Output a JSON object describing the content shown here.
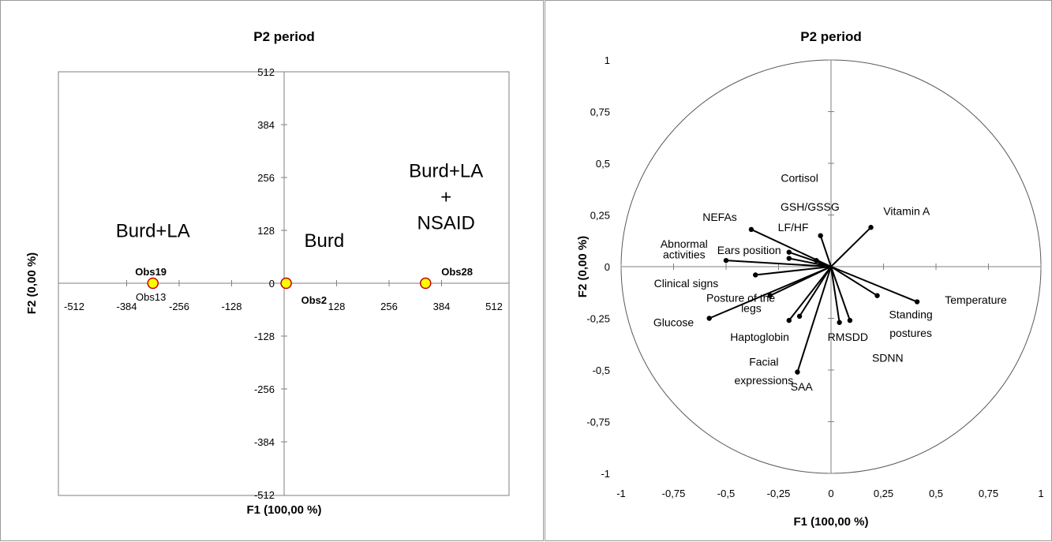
{
  "chart_data": [
    {
      "type": "scatter",
      "title": "P2 period",
      "xlabel": "F1 (100,00 %)",
      "ylabel": "F2 (0,00 %)",
      "xlim": [
        -512,
        512
      ],
      "ylim": [
        -512,
        512
      ],
      "ticks": [
        -512,
        -384,
        -256,
        -128,
        0,
        128,
        256,
        384,
        512
      ],
      "tick_labels": [
        "-512",
        "-384",
        "-256",
        "-128",
        "0",
        "128",
        "256",
        "384",
        "512"
      ],
      "grid": false,
      "points": [
        {
          "x": -320,
          "y": 0
        },
        {
          "x": 5,
          "y": 0
        },
        {
          "x": 345,
          "y": 0
        }
      ],
      "point_labels": [
        {
          "text": "Obs19",
          "x": -325,
          "y": 0,
          "pos": "above"
        },
        {
          "text": "Obs13",
          "x": -325,
          "y": 0,
          "pos": "below"
        },
        {
          "text": "Obs2",
          "x": 5,
          "y": 0,
          "pos": "below-right"
        },
        {
          "text": "Obs28",
          "x": 345,
          "y": 0,
          "pos": "above-right"
        }
      ],
      "annotations": [
        {
          "lines": [
            "Burd+LA"
          ],
          "x": -320,
          "y": 112
        },
        {
          "lines": [
            "Burd"
          ],
          "x": 98,
          "y": 88
        },
        {
          "lines": [
            "Burd+LA",
            "+",
            "NSAID"
          ],
          "x": 395,
          "y": 257
        }
      ],
      "marker_color": "#ffff00",
      "marker_edge": "#c00000"
    },
    {
      "type": "scatter",
      "subtype": "correlation-circle",
      "title": "P2 period",
      "xlabel": "F1 (100,00 %)",
      "ylabel": "F2 (0,00 %)",
      "xlim": [
        -1,
        1
      ],
      "ylim": [
        -1,
        1
      ],
      "xticks": [
        "-1",
        "-0,75",
        "-0,5",
        "-0,25",
        "0",
        "0,25",
        "0,5",
        "0,75",
        "1"
      ],
      "yticks": [
        "1",
        "0,75",
        "0,5",
        "0,25",
        "0",
        "-0,25",
        "-0,5",
        "-0,75",
        "-1"
      ],
      "grid": false,
      "vectors": [
        {
          "x": 0.19,
          "y": 0.19
        },
        {
          "x": -0.05,
          "y": 0.15
        },
        {
          "x": -0.38,
          "y": 0.18
        },
        {
          "x": -0.2,
          "y": 0.07
        },
        {
          "x": -0.5,
          "y": 0.03
        },
        {
          "x": -0.2,
          "y": 0.04
        },
        {
          "x": -0.07,
          "y": 0.03
        },
        {
          "x": -0.36,
          "y": -0.04
        },
        {
          "x": -0.29,
          "y": -0.14
        },
        {
          "x": -0.58,
          "y": -0.25
        },
        {
          "x": -0.2,
          "y": -0.26
        },
        {
          "x": -0.15,
          "y": -0.24
        },
        {
          "x": -0.16,
          "y": -0.51
        },
        {
          "x": 0.04,
          "y": -0.27
        },
        {
          "x": 0.09,
          "y": -0.26
        },
        {
          "x": 0.22,
          "y": -0.14
        },
        {
          "x": 0.41,
          "y": -0.17
        }
      ],
      "variable_labels": [
        {
          "text": "Vitamin A",
          "x": 0.36,
          "y": 0.27
        },
        {
          "text": "Cortisol",
          "x": -0.15,
          "y": 0.43
        },
        {
          "text": "GSH/GSSG",
          "x": -0.1,
          "y": 0.29
        },
        {
          "text": "NEFAs",
          "x": -0.53,
          "y": 0.24
        },
        {
          "text": "LF/HF",
          "x": -0.18,
          "y": 0.19
        },
        {
          "text": "Abnormal",
          "x": -0.7,
          "y": 0.11
        },
        {
          "text": "activities",
          "x": -0.7,
          "y": 0.06
        },
        {
          "text": "Ears position",
          "x": -0.39,
          "y": 0.08
        },
        {
          "text": "Clinical signs",
          "x": -0.69,
          "y": -0.08
        },
        {
          "text": "Posture  of the",
          "x": -0.43,
          "y": -0.15
        },
        {
          "text": "legs",
          "x": -0.38,
          "y": -0.2
        },
        {
          "text": "Glucose",
          "x": -0.75,
          "y": -0.27
        },
        {
          "text": "Haptoglobin",
          "x": -0.34,
          "y": -0.34
        },
        {
          "text": "RMSDD",
          "x": 0.08,
          "y": -0.34
        },
        {
          "text": "Standing",
          "x": 0.38,
          "y": -0.23
        },
        {
          "text": "postures",
          "x": 0.38,
          "y": -0.32
        },
        {
          "text": "Temperature",
          "x": 0.69,
          "y": -0.16
        },
        {
          "text": "SDNN",
          "x": 0.27,
          "y": -0.44
        },
        {
          "text": "Facial",
          "x": -0.32,
          "y": -0.46
        },
        {
          "text": "expressions",
          "x": -0.32,
          "y": -0.55
        },
        {
          "text": "SAA",
          "x": -0.14,
          "y": -0.58
        }
      ]
    }
  ]
}
